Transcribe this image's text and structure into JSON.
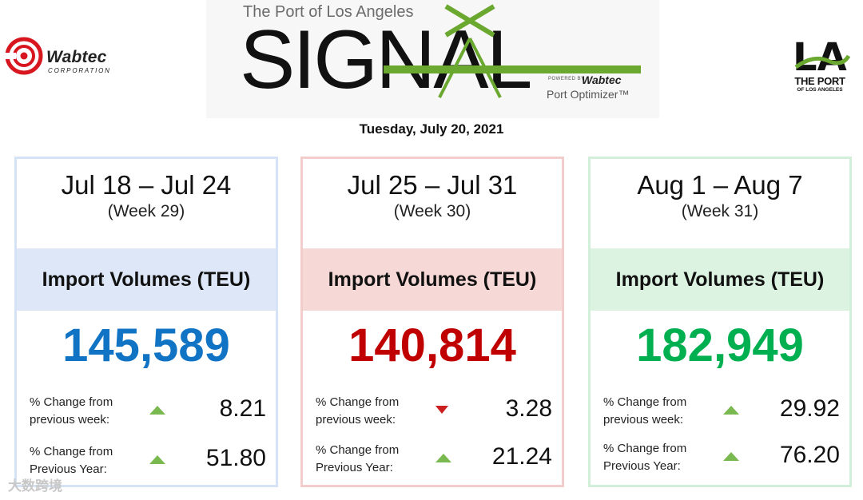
{
  "header": {
    "wabtec_name": "Wabtec",
    "wabtec_corp": "CORPORATION",
    "signal_subtitle": "The Port of Los Angeles",
    "signal_title": "SIGNAL",
    "powered_by": "POWERED BY",
    "powered_brand": "Wabtec",
    "product": "Port Optimizer™",
    "la_mark": "LA",
    "la_port": "THE PORT",
    "la_sub": "OF LOS ANGELES",
    "date": "Tuesday, July 20, 2021"
  },
  "colors": {
    "blue": "#1173c4",
    "red": "#c00000",
    "green": "#00b050"
  },
  "cards": [
    {
      "range": "Jul 18 – Jul 24",
      "week": "(Week 29)",
      "band": "Import Volumes (TEU)",
      "volume": "145,589",
      "wow_label": "% Change from previous week:",
      "wow_value": "8.21",
      "wow_dir": "up",
      "yoy_label": "% Change from Previous Year:",
      "yoy_value": "51.80",
      "yoy_dir": "up"
    },
    {
      "range": "Jul 25 – Jul 31",
      "week": "(Week 30)",
      "band": "Import Volumes (TEU)",
      "volume": "140,814",
      "wow_label": "% Change from previous week:",
      "wow_value": "3.28",
      "wow_dir": "down",
      "yoy_label": "% Change from Previous Year:",
      "yoy_value": "21.24",
      "yoy_dir": "up"
    },
    {
      "range": "Aug 1 – Aug 7",
      "week": "(Week 31)",
      "band": "Import Volumes (TEU)",
      "volume": "182,949",
      "wow_label": "% Change from previous week:",
      "wow_value": "29.92",
      "wow_dir": "up",
      "yoy_label": "% Change from Previous Year:",
      "yoy_value": "76.20",
      "yoy_dir": "up"
    }
  ],
  "watermark": "大数跨境"
}
